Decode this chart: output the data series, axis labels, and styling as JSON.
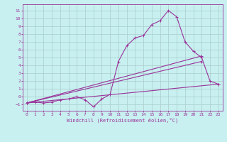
{
  "xlabel": "Windchill (Refroidissement éolien,°C)",
  "xlim": [
    -0.5,
    23.5
  ],
  "ylim": [
    -1.8,
    11.8
  ],
  "xticks": [
    0,
    1,
    2,
    3,
    4,
    5,
    6,
    7,
    8,
    9,
    10,
    11,
    12,
    13,
    14,
    15,
    16,
    17,
    18,
    19,
    20,
    21,
    22,
    23
  ],
  "yticks": [
    -1,
    0,
    1,
    2,
    3,
    4,
    5,
    6,
    7,
    8,
    9,
    10,
    11
  ],
  "bg_color": "#c8f0f0",
  "line_color": "#993399",
  "grid_color": "#aacccc",
  "series1_x": [
    0,
    1,
    2,
    3,
    4,
    5,
    6,
    7,
    8,
    9,
    10,
    11,
    12,
    13,
    14,
    15,
    16,
    17,
    18,
    19,
    20,
    21,
    22,
    23
  ],
  "series1_y": [
    -0.8,
    -0.7,
    -0.8,
    -0.7,
    -0.4,
    -0.3,
    0.0,
    -0.4,
    -1.3,
    -0.3,
    0.3,
    4.5,
    6.5,
    7.5,
    7.8,
    9.2,
    9.7,
    11.0,
    10.2,
    7.0,
    5.8,
    5.0,
    2.0,
    1.6
  ],
  "series2_x": [
    0,
    21
  ],
  "series2_y": [
    -0.8,
    5.2
  ],
  "series3_x": [
    0,
    21
  ],
  "series3_y": [
    -0.8,
    4.5
  ],
  "series4_x": [
    0,
    23
  ],
  "series4_y": [
    -0.8,
    1.6
  ]
}
